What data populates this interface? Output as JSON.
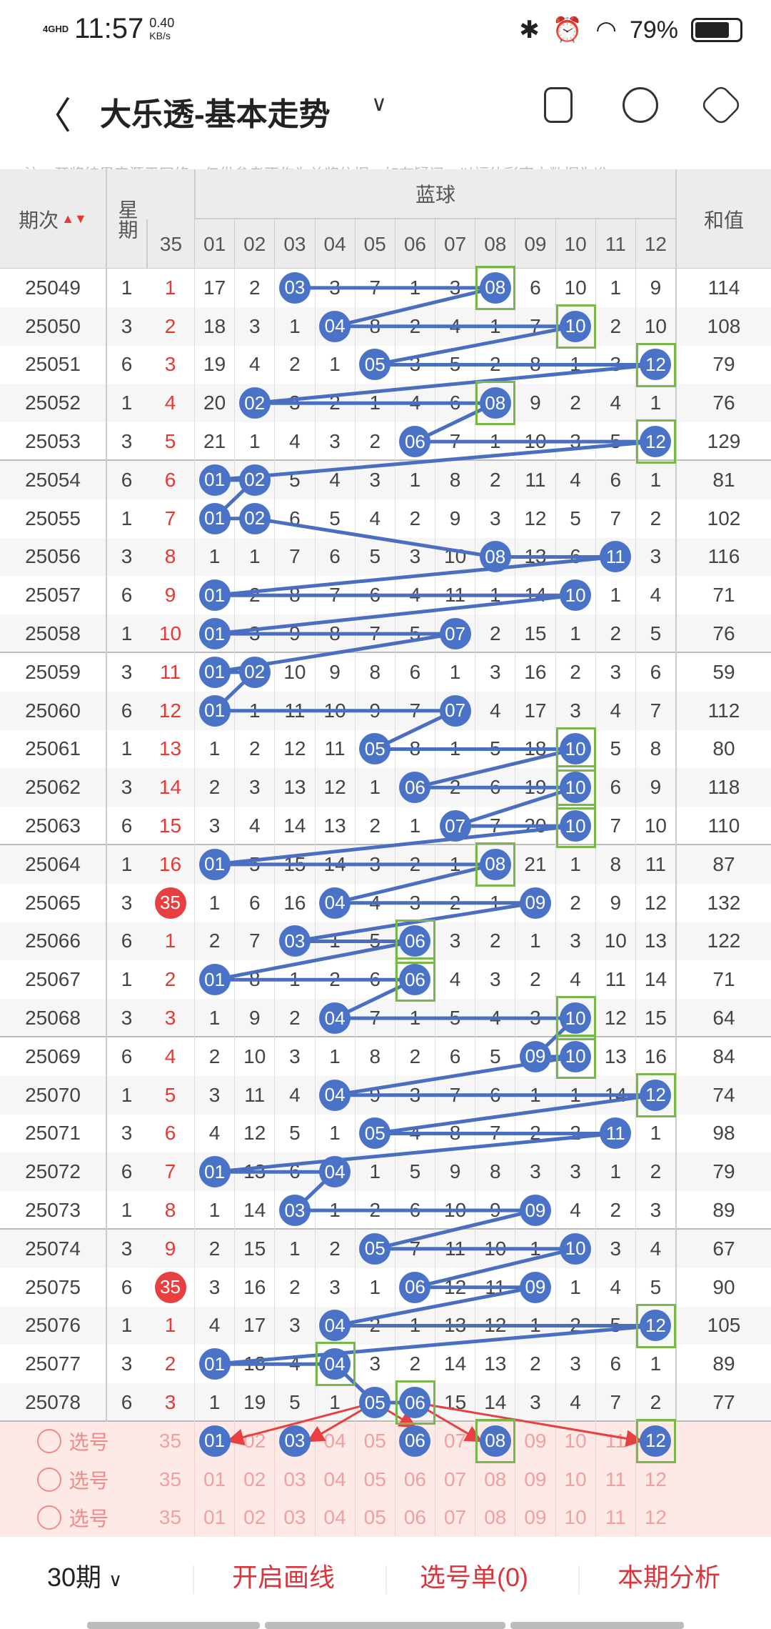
{
  "status": {
    "network": "4GHD",
    "time": "11:57",
    "speed_value": "0.40",
    "speed_unit": "KB/s",
    "battery": "79%"
  },
  "header": {
    "title": "大乐透-基本走势",
    "back_icon": "chevron-left-icon",
    "icons": [
      "device-icon",
      "share-icon",
      "settings-icon"
    ]
  },
  "note": "注：开奖结果来源于网络，仅供参考不作为兑奖依据。如有疑问，以福体彩官方数据为准。",
  "table": {
    "col_period": "期次",
    "col_week": "星期",
    "col_blue": "蓝球",
    "col_sum": "和值",
    "col_red": "35",
    "blue_cols": [
      "01",
      "02",
      "03",
      "04",
      "05",
      "06",
      "07",
      "08",
      "09",
      "10",
      "11",
      "12"
    ],
    "rows": [
      {
        "p": "25049",
        "w": "1",
        "r": "1",
        "v": [
          "17",
          "2",
          "03",
          "3",
          "7",
          "1",
          "3",
          "08",
          "6",
          "10",
          "1",
          "9"
        ],
        "b": [
          3,
          8
        ],
        "box": [
          8
        ],
        "s": "114"
      },
      {
        "p": "25050",
        "w": "3",
        "r": "2",
        "v": [
          "18",
          "3",
          "1",
          "04",
          "8",
          "2",
          "4",
          "1",
          "7",
          "10",
          "2",
          "10"
        ],
        "b": [
          4,
          10
        ],
        "box": [
          10
        ],
        "s": "108"
      },
      {
        "p": "25051",
        "w": "6",
        "r": "3",
        "v": [
          "19",
          "4",
          "2",
          "1",
          "05",
          "3",
          "5",
          "2",
          "8",
          "1",
          "3",
          "12"
        ],
        "b": [
          5,
          12
        ],
        "box": [
          12
        ],
        "s": "79"
      },
      {
        "p": "25052",
        "w": "1",
        "r": "4",
        "v": [
          "20",
          "02",
          "3",
          "2",
          "1",
          "4",
          "6",
          "08",
          "9",
          "2",
          "4",
          "1"
        ],
        "b": [
          2,
          8
        ],
        "box": [
          8
        ],
        "s": "76"
      },
      {
        "p": "25053",
        "w": "3",
        "r": "5",
        "v": [
          "21",
          "1",
          "4",
          "3",
          "2",
          "06",
          "7",
          "1",
          "10",
          "3",
          "5",
          "12"
        ],
        "b": [
          6,
          12
        ],
        "box": [
          12
        ],
        "s": "129"
      },
      {
        "p": "25054",
        "w": "6",
        "r": "6",
        "v": [
          "01",
          "02",
          "5",
          "4",
          "3",
          "1",
          "8",
          "2",
          "11",
          "4",
          "6",
          "1"
        ],
        "b": [
          1,
          2
        ],
        "box": [],
        "s": "81"
      },
      {
        "p": "25055",
        "w": "1",
        "r": "7",
        "v": [
          "01",
          "02",
          "6",
          "5",
          "4",
          "2",
          "9",
          "3",
          "12",
          "5",
          "7",
          "2"
        ],
        "b": [
          1,
          2
        ],
        "box": [],
        "s": "102"
      },
      {
        "p": "25056",
        "w": "3",
        "r": "8",
        "v": [
          "1",
          "1",
          "7",
          "6",
          "5",
          "3",
          "10",
          "08",
          "13",
          "6",
          "11",
          "3"
        ],
        "b": [
          8,
          11
        ],
        "box": [],
        "s": "116"
      },
      {
        "p": "25057",
        "w": "6",
        "r": "9",
        "v": [
          "01",
          "2",
          "8",
          "7",
          "6",
          "4",
          "11",
          "1",
          "14",
          "10",
          "1",
          "4"
        ],
        "b": [
          1,
          10
        ],
        "box": [],
        "s": "71"
      },
      {
        "p": "25058",
        "w": "1",
        "r": "10",
        "v": [
          "01",
          "3",
          "9",
          "8",
          "7",
          "5",
          "07",
          "2",
          "15",
          "1",
          "2",
          "5"
        ],
        "b": [
          1,
          7
        ],
        "box": [],
        "s": "76"
      },
      {
        "p": "25059",
        "w": "3",
        "r": "11",
        "v": [
          "01",
          "02",
          "10",
          "9",
          "8",
          "6",
          "1",
          "3",
          "16",
          "2",
          "3",
          "6"
        ],
        "b": [
          1,
          2
        ],
        "box": [],
        "s": "59"
      },
      {
        "p": "25060",
        "w": "6",
        "r": "12",
        "v": [
          "01",
          "1",
          "11",
          "10",
          "9",
          "7",
          "07",
          "4",
          "17",
          "3",
          "4",
          "7"
        ],
        "b": [
          1,
          7
        ],
        "box": [],
        "s": "112"
      },
      {
        "p": "25061",
        "w": "1",
        "r": "13",
        "v": [
          "1",
          "2",
          "12",
          "11",
          "05",
          "8",
          "1",
          "5",
          "18",
          "10",
          "5",
          "8"
        ],
        "b": [
          5,
          10
        ],
        "box": [
          10
        ],
        "s": "80"
      },
      {
        "p": "25062",
        "w": "3",
        "r": "14",
        "v": [
          "2",
          "3",
          "13",
          "12",
          "1",
          "06",
          "2",
          "6",
          "19",
          "10",
          "6",
          "9"
        ],
        "b": [
          6,
          10
        ],
        "box": [
          10
        ],
        "s": "118"
      },
      {
        "p": "25063",
        "w": "6",
        "r": "15",
        "v": [
          "3",
          "4",
          "14",
          "13",
          "2",
          "1",
          "07",
          "7",
          "20",
          "10",
          "7",
          "10"
        ],
        "b": [
          7,
          10
        ],
        "box": [
          10
        ],
        "s": "110"
      },
      {
        "p": "25064",
        "w": "1",
        "r": "16",
        "v": [
          "01",
          "5",
          "15",
          "14",
          "3",
          "2",
          "1",
          "08",
          "21",
          "1",
          "8",
          "11"
        ],
        "b": [
          1,
          8
        ],
        "box": [
          8
        ],
        "s": "87"
      },
      {
        "p": "25065",
        "w": "3",
        "r": "35",
        "v": [
          "1",
          "6",
          "16",
          "04",
          "4",
          "3",
          "2",
          "1",
          "09",
          "2",
          "9",
          "12"
        ],
        "b": [
          4,
          9
        ],
        "box": [],
        "s": "132"
      },
      {
        "p": "25066",
        "w": "6",
        "r": "1",
        "v": [
          "2",
          "7",
          "03",
          "1",
          "5",
          "06",
          "3",
          "2",
          "1",
          "3",
          "10",
          "13"
        ],
        "b": [
          3,
          6
        ],
        "box": [
          6
        ],
        "s": "122"
      },
      {
        "p": "25067",
        "w": "1",
        "r": "2",
        "v": [
          "01",
          "8",
          "1",
          "2",
          "6",
          "06",
          "4",
          "3",
          "2",
          "4",
          "11",
          "14"
        ],
        "b": [
          1,
          6
        ],
        "box": [
          6
        ],
        "s": "71"
      },
      {
        "p": "25068",
        "w": "3",
        "r": "3",
        "v": [
          "1",
          "9",
          "2",
          "04",
          "7",
          "1",
          "5",
          "4",
          "3",
          "10",
          "12",
          "15"
        ],
        "b": [
          4,
          10
        ],
        "box": [
          10
        ],
        "s": "64"
      },
      {
        "p": "25069",
        "w": "6",
        "r": "4",
        "v": [
          "2",
          "10",
          "3",
          "1",
          "8",
          "2",
          "6",
          "5",
          "09",
          "10",
          "13",
          "16"
        ],
        "b": [
          9,
          10
        ],
        "box": [
          10
        ],
        "s": "84"
      },
      {
        "p": "25070",
        "w": "1",
        "r": "5",
        "v": [
          "3",
          "11",
          "4",
          "04",
          "9",
          "3",
          "7",
          "6",
          "1",
          "1",
          "14",
          "12"
        ],
        "b": [
          4,
          12
        ],
        "box": [
          12
        ],
        "s": "74"
      },
      {
        "p": "25071",
        "w": "3",
        "r": "6",
        "v": [
          "4",
          "12",
          "5",
          "1",
          "05",
          "4",
          "8",
          "7",
          "2",
          "2",
          "11",
          "1"
        ],
        "b": [
          5,
          11
        ],
        "box": [],
        "s": "98"
      },
      {
        "p": "25072",
        "w": "6",
        "r": "7",
        "v": [
          "01",
          "13",
          "6",
          "04",
          "1",
          "5",
          "9",
          "8",
          "3",
          "3",
          "1",
          "2"
        ],
        "b": [
          1,
          4
        ],
        "box": [],
        "s": "79"
      },
      {
        "p": "25073",
        "w": "1",
        "r": "8",
        "v": [
          "1",
          "14",
          "03",
          "1",
          "2",
          "6",
          "10",
          "9",
          "09",
          "4",
          "2",
          "3"
        ],
        "b": [
          3,
          9
        ],
        "box": [],
        "s": "89"
      },
      {
        "p": "25074",
        "w": "3",
        "r": "9",
        "v": [
          "2",
          "15",
          "1",
          "2",
          "05",
          "7",
          "11",
          "10",
          "1",
          "10",
          "3",
          "4"
        ],
        "b": [
          5,
          10
        ],
        "box": [],
        "s": "67"
      },
      {
        "p": "25075",
        "w": "6",
        "r": "35",
        "v": [
          "3",
          "16",
          "2",
          "3",
          "1",
          "06",
          "12",
          "11",
          "09",
          "1",
          "4",
          "5"
        ],
        "b": [
          6,
          9
        ],
        "box": [],
        "s": "90"
      },
      {
        "p": "25076",
        "w": "1",
        "r": "1",
        "v": [
          "4",
          "17",
          "3",
          "04",
          "2",
          "1",
          "13",
          "12",
          "1",
          "2",
          "5",
          "12"
        ],
        "b": [
          4,
          12
        ],
        "box": [
          12
        ],
        "s": "105"
      },
      {
        "p": "25077",
        "w": "3",
        "r": "2",
        "v": [
          "01",
          "18",
          "4",
          "04",
          "3",
          "2",
          "14",
          "13",
          "2",
          "3",
          "6",
          "1"
        ],
        "b": [
          1,
          4
        ],
        "box": [
          4
        ],
        "s": "89"
      },
      {
        "p": "25078",
        "w": "6",
        "r": "3",
        "v": [
          "1",
          "19",
          "5",
          "1",
          "05",
          "06",
          "15",
          "14",
          "3",
          "4",
          "7",
          "2"
        ],
        "b": [
          5,
          6
        ],
        "box": [
          6
        ],
        "s": "77"
      }
    ],
    "pick_label": "选号",
    "pick_rows": [
      {
        "r": "35",
        "v": [
          "01",
          "02",
          "03",
          "04",
          "05",
          "06",
          "07",
          "08",
          "09",
          "10",
          "11",
          "12"
        ],
        "b": [
          1,
          3,
          6,
          8,
          12
        ],
        "box": [
          8,
          12
        ]
      },
      {
        "r": "35",
        "v": [
          "01",
          "02",
          "03",
          "04",
          "05",
          "06",
          "07",
          "08",
          "09",
          "10",
          "11",
          "12"
        ],
        "b": [],
        "box": []
      },
      {
        "r": "35",
        "v": [
          "01",
          "02",
          "03",
          "04",
          "05",
          "06",
          "07",
          "08",
          "09",
          "10",
          "11",
          "12"
        ],
        "b": [],
        "box": []
      }
    ]
  },
  "bottom": {
    "periods": "30期",
    "draw_lines": "开启画线",
    "pick_list": "选号单(0)",
    "analysis": "本期分析"
  },
  "colors": {
    "ball": "#4a72c6",
    "line": "#4a6fc0",
    "box": "#78b84a",
    "red": "#e84040"
  }
}
